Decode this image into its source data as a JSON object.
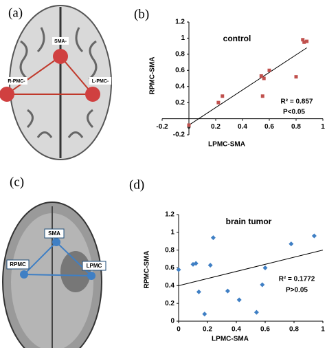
{
  "panels": [
    "(a)",
    "(b)",
    "(c)",
    "(d)"
  ],
  "brain_a": {
    "labels": [
      "SMA-",
      "R-PMC-",
      "L-PMC-"
    ]
  },
  "brain_c": {
    "labels": [
      "SMA",
      "RPMC",
      "LPMC"
    ]
  },
  "chart_data": [
    {
      "type": "scatter",
      "x_label": "LPMC-SMA",
      "y_label": "RPMC-SMA",
      "annotations": [
        "control",
        "R² = 0.857",
        "P<0.05"
      ],
      "color": "#c0504d",
      "marker": "square",
      "x": [
        0,
        0.22,
        0.25,
        0.54,
        0.56,
        0.55,
        0.6,
        0.8,
        0.85,
        0.86,
        0.88
      ],
      "values": [
        -0.08,
        0.2,
        0.28,
        0.53,
        0.5,
        0.28,
        0.6,
        0.52,
        0.98,
        0.95,
        0.96
      ],
      "fit": {
        "x": [
          0,
          0.88
        ],
        "y": [
          -0.08,
          0.88
        ]
      },
      "xlim": [
        -0.2,
        1
      ],
      "xticks": [
        -0.2,
        0,
        0.2,
        0.4,
        0.6,
        0.8,
        1
      ],
      "ylim": [
        -0.2,
        1.2
      ],
      "yticks": [
        -0.2,
        0.2,
        0.4,
        0.6,
        0.8,
        1,
        1.2
      ]
    },
    {
      "type": "scatter",
      "x_label": "LPMC-SMA",
      "y_label": "RPMC-SMA",
      "annotations": [
        "brain tumor",
        "R² = 0.1772",
        "P>0.05"
      ],
      "color": "#3f7fc4",
      "marker": "diamond",
      "x": [
        0,
        0.1,
        0.12,
        0.14,
        0.18,
        0.22,
        0.24,
        0.34,
        0.42,
        0.54,
        0.58,
        0.6,
        0.78,
        0.94
      ],
      "values": [
        0.58,
        0.64,
        0.65,
        0.33,
        0.08,
        0.63,
        0.94,
        0.34,
        0.24,
        0.1,
        0.41,
        0.6,
        0.87,
        0.96
      ],
      "fit": {
        "x": [
          0,
          1
        ],
        "y": [
          0.4,
          0.8
        ]
      },
      "xlim": [
        0,
        1
      ],
      "xticks": [
        0,
        0.2,
        0.4,
        0.6,
        0.8,
        1
      ],
      "ylim": [
        0,
        1.2
      ],
      "yticks": [
        0,
        0.2,
        0.4,
        0.6,
        0.8,
        1,
        1.2
      ]
    }
  ]
}
